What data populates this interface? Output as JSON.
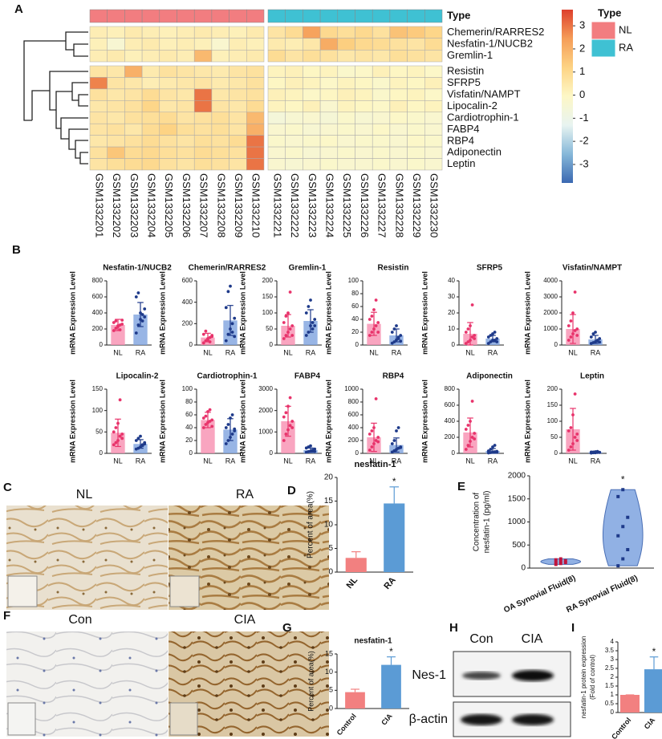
{
  "labels": [
    "A",
    "B",
    "C",
    "D",
    "E",
    "F",
    "G",
    "H",
    "I"
  ],
  "images": [
    {
      "captions": [
        "NL",
        "RA"
      ]
    },
    {
      "captions": [
        "Con",
        "CIA"
      ]
    }
  ],
  "blot": {
    "lanes": [
      "Con",
      "CIA"
    ],
    "bands": [
      "Nes-1",
      "β-actin"
    ]
  },
  "chart_data": [
    {
      "type": "heatmap",
      "group_title": "Type",
      "groups": [
        {
          "name": "NL",
          "color": "#f27d80",
          "columns": [
            "GSM1332201",
            "GSM1332202",
            "GSM1332203",
            "GSM1332204",
            "GSM1332205",
            "GSM1332206",
            "GSM1332207",
            "GSM1332208",
            "GSM1332209",
            "GSM1332210"
          ]
        },
        {
          "name": "RA",
          "color": "#3fc1d3",
          "columns": [
            "GSM1332221",
            "GSM1332222",
            "GSM1332223",
            "GSM1332224",
            "GSM1332225",
            "GSM1332226",
            "GSM1332227",
            "GSM1332228",
            "GSM1332229",
            "GSM1332230"
          ]
        }
      ],
      "rows": [
        "Chemerin/RARRES2",
        "Nesfatin-1/NUCB2",
        "Gremlin-1",
        "Resistin",
        "SFRP5",
        "Visfatin/NAMPT",
        "Lipocalin-2",
        "Cardiotrophin-1",
        "FABP4",
        "RBP4",
        "Adiponectin",
        "Leptin"
      ],
      "values": [
        [
          0.3,
          0.2,
          0.4,
          0.3,
          0.2,
          0.3,
          0.4,
          0.3,
          0.2,
          0.4,
          0.6,
          0.9,
          2.3,
          1.0,
          0.8,
          1.0,
          0.7,
          1.6,
          1.4,
          1.1
        ],
        [
          0.2,
          -0.4,
          0.3,
          0.4,
          0.2,
          0.3,
          0.2,
          -0.3,
          0.3,
          0.2,
          0.4,
          0.3,
          0.5,
          2.1,
          1.3,
          1.0,
          0.9,
          0.7,
          0.6,
          0.9
        ],
        [
          0.3,
          0.4,
          0.2,
          0.3,
          0.4,
          0.3,
          1.8,
          0.2,
          0.3,
          0.4,
          0.9,
          0.6,
          0.8,
          0.7,
          0.5,
          0.6,
          0.5,
          0.8,
          0.7,
          0.6
        ],
        [
          0.6,
          0.5,
          2.0,
          0.4,
          0.7,
          0.6,
          0.5,
          0.4,
          0.6,
          0.7,
          0.1,
          0.2,
          0.0,
          0.1,
          -0.2,
          -0.1,
          0.2,
          0.0,
          0.1,
          -0.1
        ],
        [
          2.8,
          0.6,
          0.5,
          0.3,
          0.4,
          0.5,
          0.6,
          0.4,
          0.5,
          0.7,
          0.0,
          0.2,
          0.1,
          -0.1,
          0.1,
          0.0,
          -0.2,
          0.1,
          0.0,
          0.2
        ],
        [
          0.7,
          0.5,
          0.6,
          0.9,
          0.6,
          0.5,
          3.0,
          0.5,
          0.6,
          0.7,
          0.2,
          0.1,
          -0.1,
          0.0,
          0.2,
          0.1,
          -0.2,
          0.0,
          0.1,
          -0.1
        ],
        [
          0.5,
          0.6,
          0.7,
          1.1,
          0.5,
          0.6,
          3.0,
          0.6,
          0.5,
          0.9,
          0.1,
          0.0,
          0.2,
          -0.3,
          0.1,
          0.0,
          -0.1,
          0.2,
          0.0,
          0.1
        ],
        [
          0.6,
          0.5,
          0.7,
          0.8,
          0.9,
          0.6,
          0.7,
          0.8,
          0.6,
          1.8,
          -0.6,
          -0.4,
          -0.3,
          -0.5,
          -0.2,
          -0.4,
          -0.3,
          -0.1,
          -0.2,
          -0.3
        ],
        [
          0.6,
          0.7,
          0.5,
          0.9,
          1.2,
          0.8,
          0.7,
          0.8,
          0.6,
          2.0,
          -0.3,
          -0.2,
          -0.4,
          -0.3,
          -0.2,
          -0.3,
          -0.1,
          -0.3,
          -0.2,
          -0.3
        ],
        [
          0.5,
          0.6,
          0.7,
          0.9,
          0.7,
          0.6,
          0.8,
          0.7,
          0.9,
          3.0,
          -0.2,
          -0.3,
          -0.2,
          -0.1,
          -0.3,
          -0.2,
          -0.2,
          -0.3,
          -0.1,
          -0.2
        ],
        [
          0.7,
          1.5,
          0.9,
          1.0,
          0.8,
          0.7,
          0.9,
          0.8,
          0.7,
          3.0,
          -0.3,
          -0.2,
          -0.4,
          -0.3,
          -0.2,
          -0.3,
          -0.2,
          -0.3,
          -0.2,
          -0.3
        ],
        [
          0.6,
          0.8,
          0.9,
          1.0,
          0.7,
          0.6,
          0.8,
          0.7,
          0.6,
          3.0,
          -0.3,
          -0.4,
          -0.3,
          -0.2,
          -0.3,
          -0.3,
          -0.2,
          -0.3,
          -0.2,
          -0.3
        ]
      ],
      "colorscale": {
        "colors": [
          "#3a68b1",
          "#86b8d9",
          "#e8f4f1",
          "#fdf7c6",
          "#fdd384",
          "#f59d58",
          "#dd3f2c"
        ],
        "lim": [
          -3.8,
          3.7
        ],
        "ticks": [
          3,
          2,
          1,
          0,
          -1,
          -2,
          -3
        ]
      }
    },
    {
      "type": "bar",
      "title": "Nesfatin-1/NUCB2",
      "ylabel": "mRNA Expression Level",
      "categories": [
        "NL",
        "RA"
      ],
      "values": [
        250,
        380
      ],
      "errors": [
        70,
        150
      ],
      "error_bars": "both",
      "points": [
        [
          180,
          210,
          230,
          250,
          260,
          280,
          300,
          240,
          190,
          310
        ],
        [
          150,
          250,
          320,
          380,
          450,
          600,
          650,
          400,
          300,
          350
        ]
      ],
      "colors": [
        "#f78fb0",
        "#7ea3df"
      ],
      "point_colors": [
        "#e8336b",
        "#1e3a8a"
      ],
      "ylim": [
        0,
        800
      ],
      "yticks": [
        0,
        200,
        400,
        600,
        800
      ]
    },
    {
      "type": "bar",
      "title": "Chemerin/RARRES2",
      "ylabel": "mRNA Expression Level",
      "categories": [
        "NL",
        "RA"
      ],
      "values": [
        70,
        230
      ],
      "errors": [
        40,
        140
      ],
      "error_bars": "both",
      "points": [
        [
          20,
          40,
          60,
          70,
          90,
          100,
          130,
          50,
          30,
          80
        ],
        [
          40,
          100,
          150,
          200,
          250,
          350,
          500,
          550,
          120,
          80
        ]
      ],
      "colors": [
        "#f78fb0",
        "#7ea3df"
      ],
      "point_colors": [
        "#e8336b",
        "#1e3a8a"
      ],
      "ylim": [
        0,
        600
      ],
      "yticks": [
        0,
        200,
        400,
        600
      ]
    },
    {
      "type": "bar",
      "title": "Gremlin-1",
      "ylabel": "mRNA Expression Level",
      "categories": [
        "NL",
        "RA"
      ],
      "values": [
        60,
        75
      ],
      "errors": [
        35,
        35
      ],
      "error_bars": "both",
      "points": [
        [
          20,
          30,
          40,
          50,
          60,
          70,
          90,
          100,
          165,
          30
        ],
        [
          30,
          40,
          60,
          70,
          80,
          100,
          120,
          140,
          50,
          60
        ]
      ],
      "colors": [
        "#f78fb0",
        "#7ea3df"
      ],
      "point_colors": [
        "#e8336b",
        "#1e3a8a"
      ],
      "ylim": [
        0,
        200
      ],
      "yticks": [
        0,
        50,
        100,
        150,
        200
      ]
    },
    {
      "type": "bar",
      "title": "Resistin",
      "ylabel": "mRNA Expression Level",
      "categories": [
        "NL",
        "RA"
      ],
      "values": [
        33,
        15
      ],
      "errors": [
        18,
        10
      ],
      "error_bars": "both",
      "points": [
        [
          15,
          20,
          25,
          30,
          35,
          40,
          45,
          55,
          70,
          20
        ],
        [
          3,
          5,
          8,
          10,
          15,
          20,
          25,
          30,
          12,
          6
        ]
      ],
      "colors": [
        "#f78fb0",
        "#7ea3df"
      ],
      "point_colors": [
        "#e8336b",
        "#1e3a8a"
      ],
      "ylim": [
        0,
        100
      ],
      "yticks": [
        0,
        20,
        40,
        60,
        80,
        100
      ]
    },
    {
      "type": "bar",
      "title": "SFRP5",
      "ylabel": "mRNA Expression Level",
      "categories": [
        "NL",
        "RA"
      ],
      "values": [
        7,
        4
      ],
      "errors": [
        7,
        2
      ],
      "error_bars": "both",
      "points": [
        [
          1,
          2,
          3,
          5,
          6,
          8,
          10,
          12,
          25,
          4
        ],
        [
          1,
          2,
          3,
          3,
          4,
          5,
          6,
          7,
          8,
          2
        ]
      ],
      "colors": [
        "#f78fb0",
        "#7ea3df"
      ],
      "point_colors": [
        "#e8336b",
        "#1e3a8a"
      ],
      "ylim": [
        0,
        40
      ],
      "yticks": [
        0,
        10,
        20,
        30,
        40
      ]
    },
    {
      "type": "bar",
      "title": "Visfatin/NAMPT",
      "ylabel": "mRNA Expression Level",
      "categories": [
        "NL",
        "RA"
      ],
      "values": [
        1000,
        350
      ],
      "errors": [
        900,
        250
      ],
      "error_bars": "both",
      "points": [
        [
          300,
          500,
          700,
          900,
          1000,
          1200,
          1500,
          2000,
          3300,
          600
        ],
        [
          100,
          150,
          200,
          300,
          400,
          500,
          700,
          800,
          250,
          180
        ]
      ],
      "colors": [
        "#f78fb0",
        "#7ea3df"
      ],
      "point_colors": [
        "#e8336b",
        "#1e3a8a"
      ],
      "ylim": [
        0,
        4000
      ],
      "yticks": [
        0,
        1000,
        2000,
        3000,
        4000
      ]
    },
    {
      "type": "bar",
      "title": "Lipocalin-2",
      "ylabel": "mRNA Expression Level",
      "categories": [
        "NL",
        "RA"
      ],
      "values": [
        48,
        22
      ],
      "errors": [
        32,
        10
      ],
      "error_bars": "both",
      "points": [
        [
          20,
          25,
          30,
          40,
          45,
          50,
          60,
          70,
          125,
          35
        ],
        [
          10,
          12,
          15,
          20,
          25,
          30,
          35,
          40,
          18,
          22
        ]
      ],
      "colors": [
        "#f78fb0",
        "#7ea3df"
      ],
      "point_colors": [
        "#e8336b",
        "#1e3a8a"
      ],
      "ylim": [
        0,
        150
      ],
      "yticks": [
        0,
        50,
        100,
        150
      ]
    },
    {
      "type": "bar",
      "title": "Cardiotrophin-1",
      "ylabel": "mRNA Expression Level",
      "categories": [
        "NL",
        "RA"
      ],
      "values": [
        52,
        37
      ],
      "errors": [
        12,
        17
      ],
      "error_bars": "both",
      "points": [
        [
          40,
          45,
          48,
          50,
          52,
          55,
          58,
          65,
          68,
          42
        ],
        [
          15,
          20,
          25,
          30,
          35,
          40,
          45,
          55,
          60,
          38
        ]
      ],
      "colors": [
        "#f78fb0",
        "#7ea3df"
      ],
      "point_colors": [
        "#e8336b",
        "#1e3a8a"
      ],
      "ylim": [
        0,
        100
      ],
      "yticks": [
        0,
        20,
        40,
        60,
        80,
        100
      ]
    },
    {
      "type": "bar",
      "title": "FABP4",
      "ylabel": "mRNA Expression Level",
      "categories": [
        "NL",
        "RA"
      ],
      "values": [
        1500,
        150
      ],
      "errors": [
        700,
        100
      ],
      "error_bars": "both",
      "points": [
        [
          600,
          900,
          1100,
          1300,
          1500,
          1700,
          1900,
          2200,
          2600,
          1200
        ],
        [
          50,
          80,
          100,
          150,
          200,
          250,
          300,
          350,
          120,
          90
        ]
      ],
      "colors": [
        "#f78fb0",
        "#7ea3df"
      ],
      "point_colors": [
        "#e8336b",
        "#1e3a8a"
      ],
      "ylim": [
        0,
        3000
      ],
      "yticks": [
        0,
        1000,
        2000,
        3000
      ]
    },
    {
      "type": "bar",
      "title": "RBP4",
      "ylabel": "mRNA Expression Level",
      "categories": [
        "NL",
        "RA"
      ],
      "values": [
        250,
        130
      ],
      "errors": [
        220,
        110
      ],
      "error_bars": "both",
      "points": [
        [
          50,
          100,
          150,
          200,
          250,
          300,
          350,
          400,
          850,
          180
        ],
        [
          20,
          40,
          60,
          80,
          100,
          150,
          200,
          350,
          400,
          90
        ]
      ],
      "colors": [
        "#f78fb0",
        "#7ea3df"
      ],
      "point_colors": [
        "#e8336b",
        "#1e3a8a"
      ],
      "ylim": [
        0,
        1000
      ],
      "yticks": [
        0,
        200,
        400,
        600,
        800,
        1000
      ]
    },
    {
      "type": "bar",
      "title": "Adiponectin",
      "ylabel": "mRNA Expression Level",
      "categories": [
        "NL",
        "RA"
      ],
      "values": [
        260,
        30
      ],
      "errors": [
        180,
        30
      ],
      "error_bars": "both",
      "points": [
        [
          50,
          100,
          150,
          200,
          250,
          300,
          350,
          400,
          650,
          180
        ],
        [
          5,
          10,
          15,
          20,
          25,
          30,
          50,
          80,
          100,
          12
        ]
      ],
      "colors": [
        "#f78fb0",
        "#7ea3df"
      ],
      "point_colors": [
        "#e8336b",
        "#1e3a8a"
      ],
      "ylim": [
        0,
        800
      ],
      "yticks": [
        0,
        200,
        400,
        600,
        800
      ]
    },
    {
      "type": "bar",
      "title": "Leptin",
      "ylabel": "mRNA Expression Level",
      "categories": [
        "NL",
        "RA"
      ],
      "values": [
        75,
        3
      ],
      "errors": [
        65,
        3
      ],
      "error_bars": "both",
      "points": [
        [
          10,
          20,
          30,
          50,
          60,
          70,
          80,
          120,
          185,
          40
        ],
        [
          1,
          2,
          2,
          3,
          3,
          4,
          4,
          5,
          6,
          3
        ]
      ],
      "colors": [
        "#f78fb0",
        "#7ea3df"
      ],
      "point_colors": [
        "#e8336b",
        "#1e3a8a"
      ],
      "ylim": [
        0,
        200
      ],
      "yticks": [
        0,
        50,
        100,
        150,
        200
      ]
    },
    {
      "type": "bar",
      "title": "nesfatin-1",
      "ylabel": "Percent of area(%)",
      "categories": [
        "NL",
        "RA"
      ],
      "values": [
        3,
        14.5
      ],
      "errors": [
        1.3,
        3.5
      ],
      "error_bars": "up",
      "colors": [
        "#f28080",
        "#5b9bd5"
      ],
      "ylim": [
        0,
        20
      ],
      "yticks": [
        0,
        5,
        10,
        15,
        20
      ],
      "annotation": "*"
    },
    {
      "type": "violin",
      "ylabel": [
        "Concentration of",
        "nesfatin-1 (pg/ml)"
      ],
      "categories": [
        "OA Synovial Fluid(8)",
        "RA Synovial Fluid(8)"
      ],
      "points": [
        [
          80,
          100,
          120,
          130,
          150,
          160,
          180,
          200
        ],
        [
          50,
          200,
          400,
          700,
          900,
          1100,
          1550,
          1700
        ]
      ],
      "colors": [
        "#7ea3df",
        "#7ea3df"
      ],
      "point_colors": [
        "#c0143c",
        "#1e3a8a"
      ],
      "ylim": [
        0,
        2000
      ],
      "yticks": [
        0,
        500,
        1000,
        1500,
        2000
      ],
      "annotation": "*"
    },
    {
      "type": "bar",
      "title": "nesfatin-1",
      "ylabel": "Percent of area(%)",
      "categories": [
        "Control",
        "CIA"
      ],
      "values": [
        4.5,
        12
      ],
      "errors": [
        0.8,
        2.2
      ],
      "error_bars": "up",
      "colors": [
        "#f28080",
        "#5b9bd5"
      ],
      "ylim": [
        0,
        15
      ],
      "yticks": [
        0,
        5,
        10,
        15
      ],
      "annotation": "*"
    },
    {
      "type": "bar",
      "ylabel": [
        "nesfatin-1 protein expression",
        "(Fold of control)"
      ],
      "categories": [
        "Control",
        "CIA"
      ],
      "values": [
        1,
        2.45
      ],
      "errors": [
        0,
        0.7
      ],
      "error_bars": "up",
      "colors": [
        "#f28080",
        "#5b9bd5"
      ],
      "ylim": [
        0,
        4
      ],
      "yticks": [
        0,
        0.5,
        1,
        1.5,
        2,
        2.5,
        3,
        3.5,
        4
      ],
      "annotation": "*"
    }
  ]
}
